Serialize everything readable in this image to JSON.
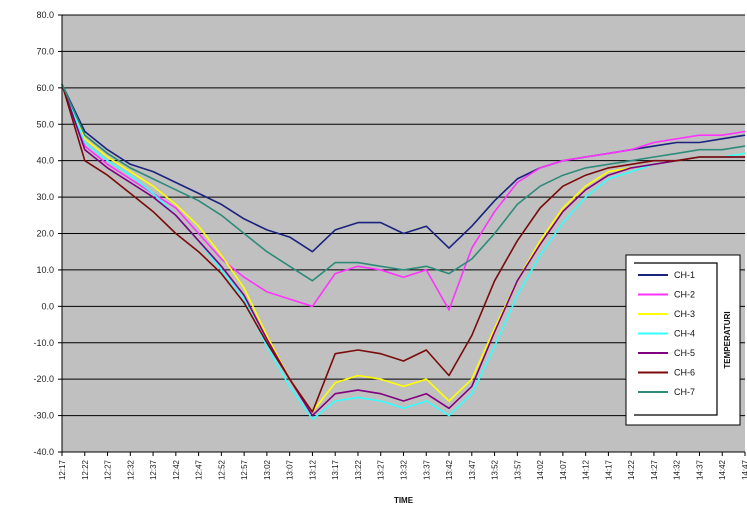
{
  "chart_data": {
    "type": "line",
    "xlabel": "TIME",
    "ylabel": "",
    "legend_title": "TEMPERATURI",
    "legend_position": "right",
    "grid": true,
    "background": "#c0c0c0",
    "ylim": [
      -40,
      80
    ],
    "y_ticks": [
      {
        "value": 80,
        "label": "80.0"
      },
      {
        "value": 70,
        "label": "70.0"
      },
      {
        "value": 60,
        "label": "60.0"
      },
      {
        "value": 50,
        "label": "50.0"
      },
      {
        "value": 40,
        "label": "40.0"
      },
      {
        "value": 30,
        "label": "30.0"
      },
      {
        "value": 20,
        "label": "20.0"
      },
      {
        "value": 10,
        "label": "10.0"
      },
      {
        "value": 0,
        "label": "0.0"
      },
      {
        "value": -10,
        "label": "-10.0"
      },
      {
        "value": -20,
        "label": "-20.0"
      },
      {
        "value": -30,
        "label": "-30.0"
      },
      {
        "value": -40,
        "label": "-40.0"
      }
    ],
    "x_categories": [
      "12:17",
      "12:22",
      "12:27",
      "12:32",
      "12:37",
      "12:42",
      "12:47",
      "12:52",
      "12:57",
      "13:02",
      "13:07",
      "13:12",
      "13:17",
      "13:22",
      "13:27",
      "13:32",
      "13:37",
      "13:42",
      "13:47",
      "13:52",
      "13:57",
      "14:02",
      "14:07",
      "14:12",
      "14:17",
      "14:22",
      "14:27",
      "14:32",
      "14:37",
      "14:42",
      "14:47"
    ],
    "series": [
      {
        "name": "CH-1",
        "color": "#1a237e",
        "values": [
          61,
          48,
          43,
          39,
          37,
          34,
          31,
          28,
          24,
          21,
          19,
          15,
          21,
          23,
          23,
          20,
          22,
          16,
          22,
          29,
          35,
          38,
          40,
          41,
          42,
          43,
          44,
          45,
          45,
          46,
          47
        ]
      },
      {
        "name": "CH-2",
        "color": "#ff33ff",
        "values": [
          61,
          44,
          39,
          35,
          31,
          27,
          20,
          13,
          8,
          4,
          2,
          0,
          9,
          11,
          10,
          8,
          10,
          -1,
          16,
          26,
          34,
          38,
          40,
          41,
          42,
          43,
          45,
          46,
          47,
          47,
          48
        ]
      },
      {
        "name": "CH-3",
        "color": "#ffff00",
        "values": [
          61,
          46,
          41,
          37,
          33,
          28,
          22,
          14,
          5,
          -8,
          -20,
          -29,
          -21,
          -19,
          -20,
          -22,
          -20,
          -26,
          -20,
          -6,
          7,
          18,
          27,
          33,
          37,
          38,
          39,
          40,
          41,
          41,
          42
        ]
      },
      {
        "name": "CH-4",
        "color": "#33ffff",
        "values": [
          61,
          45,
          40,
          36,
          31,
          25,
          18,
          10,
          2,
          -11,
          -22,
          -31,
          -26,
          -25,
          -26,
          -28,
          -26,
          -30,
          -24,
          -11,
          3,
          14,
          23,
          30,
          35,
          37,
          39,
          40,
          41,
          41,
          42
        ]
      },
      {
        "name": "CH-5",
        "color": "#800080",
        "values": [
          61,
          43,
          38,
          34,
          30,
          25,
          18,
          11,
          3,
          -9,
          -20,
          -30,
          -24,
          -23,
          -24,
          -26,
          -24,
          -28,
          -22,
          -7,
          7,
          17,
          26,
          32,
          36,
          38,
          39,
          40,
          41,
          41,
          41
        ]
      },
      {
        "name": "CH-6",
        "color": "#7b0a0a",
        "values": [
          61,
          40,
          36,
          31,
          26,
          20,
          15,
          9,
          1,
          -10,
          -20,
          -29,
          -13,
          -12,
          -13,
          -15,
          -12,
          -19,
          -8,
          7,
          18,
          27,
          33,
          36,
          38,
          39,
          40,
          40,
          41,
          41,
          41
        ]
      },
      {
        "name": "CH-7",
        "color": "#2e8b7a",
        "values": [
          61,
          47,
          42,
          38,
          35,
          32,
          29,
          25,
          20,
          15,
          11,
          7,
          12,
          12,
          11,
          10,
          11,
          9,
          13,
          20,
          28,
          33,
          36,
          38,
          39,
          40,
          41,
          42,
          43,
          43,
          44
        ]
      }
    ]
  }
}
